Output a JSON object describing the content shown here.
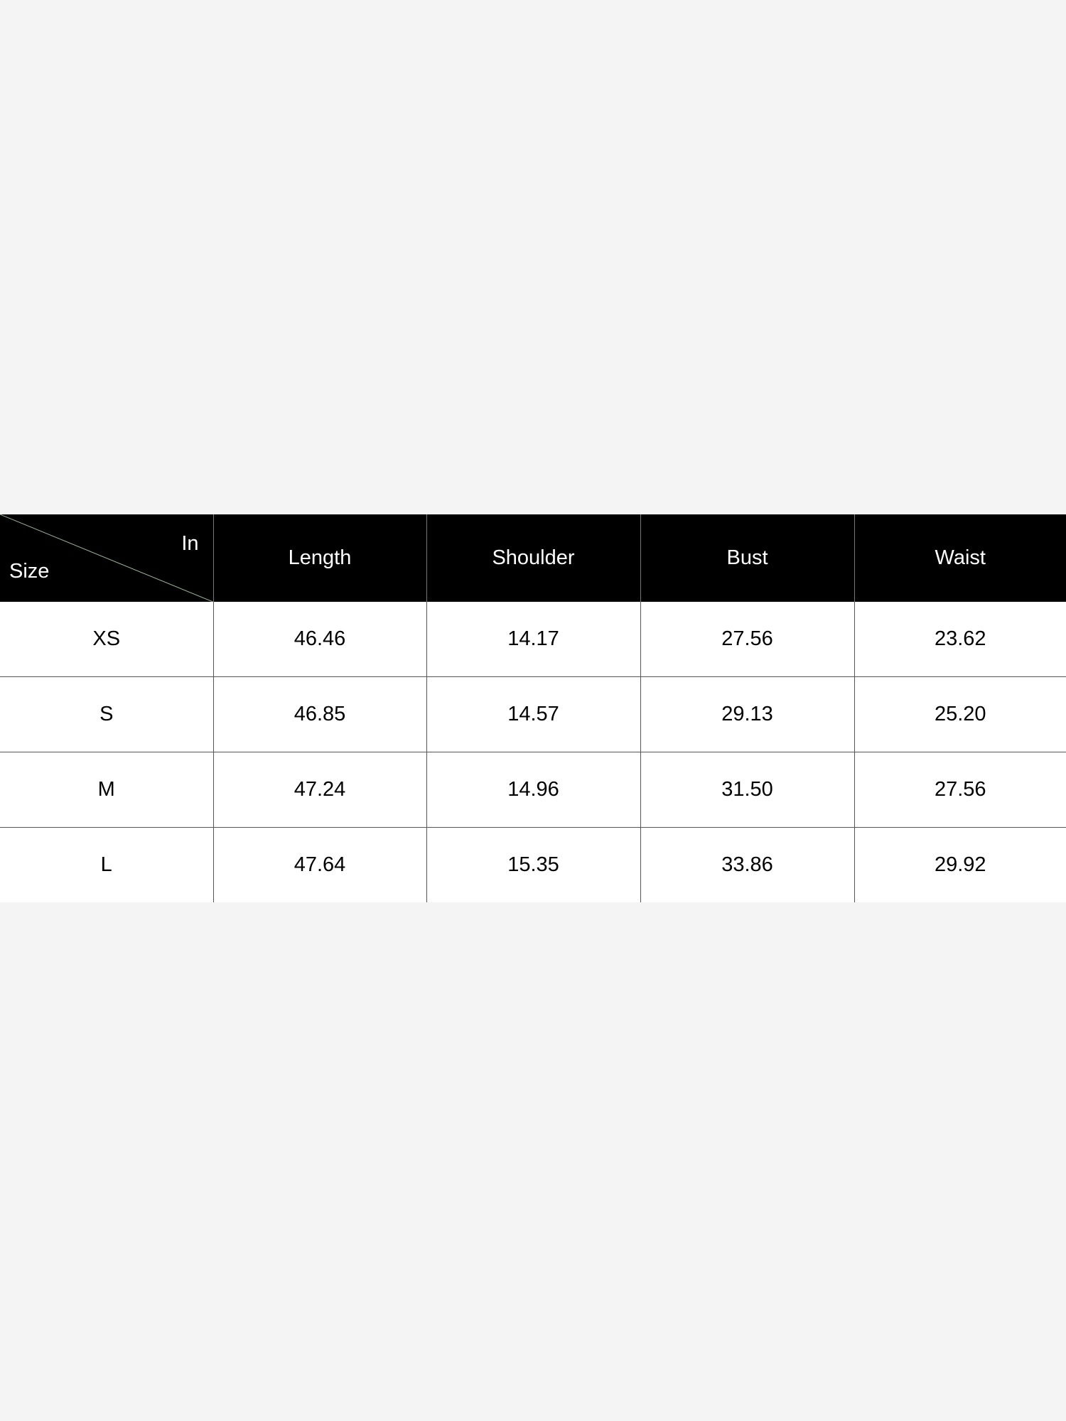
{
  "table": {
    "corner": {
      "row_label": "Size",
      "unit_label": "In"
    },
    "columns": [
      "Length",
      "Shoulder",
      "Bust",
      "Waist"
    ],
    "rows": [
      {
        "size": "XS",
        "values": [
          "46.46",
          "14.17",
          "27.56",
          "23.62"
        ]
      },
      {
        "size": "S",
        "values": [
          "46.85",
          "14.57",
          "29.13",
          "25.20"
        ]
      },
      {
        "size": "M",
        "values": [
          "47.24",
          "14.96",
          "31.50",
          "27.56"
        ]
      },
      {
        "size": "L",
        "values": [
          "47.64",
          "15.35",
          "33.86",
          "29.92"
        ]
      }
    ]
  }
}
